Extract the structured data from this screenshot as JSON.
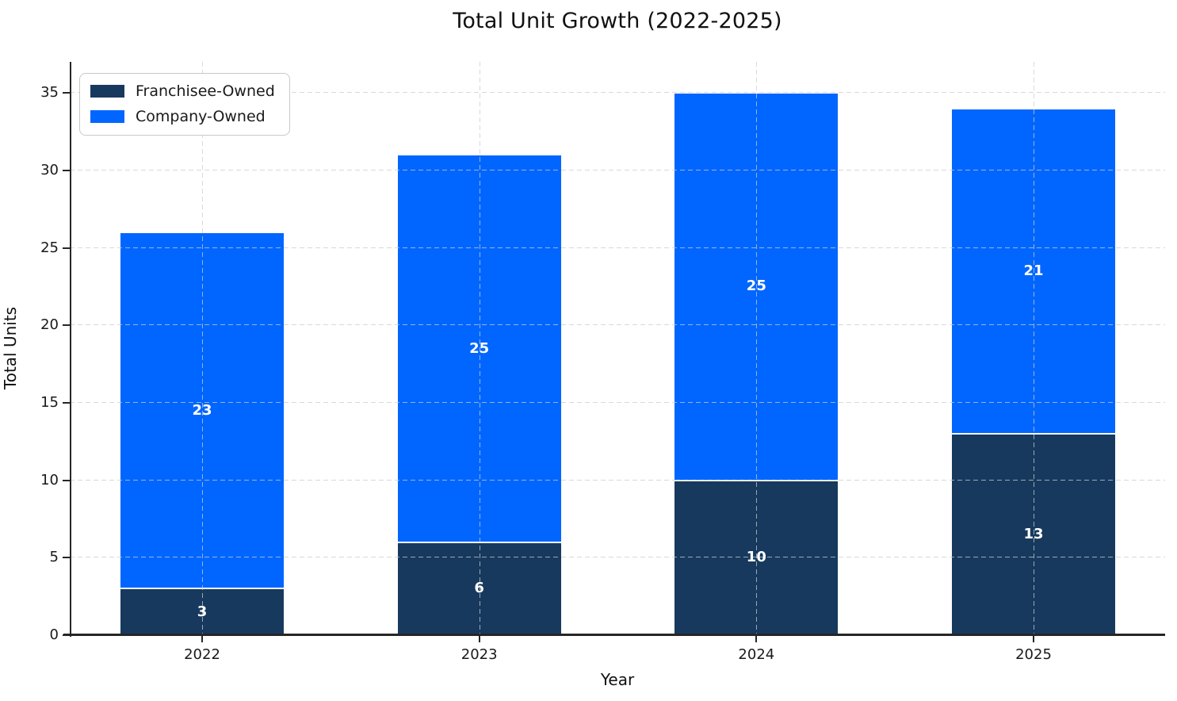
{
  "chart_data": {
    "type": "bar",
    "stacked": true,
    "title": "Total Unit Growth (2022-2025)",
    "xlabel": "Year",
    "ylabel": "Total Units",
    "categories": [
      "2022",
      "2023",
      "2024",
      "2025"
    ],
    "series": [
      {
        "name": "Franchisee-Owned",
        "color": "#17395e",
        "values": [
          3,
          6,
          10,
          13
        ]
      },
      {
        "name": "Company-Owned",
        "color": "#0066ff",
        "values": [
          23,
          25,
          25,
          21
        ]
      }
    ],
    "bar_value_labels": [
      [
        3,
        6,
        10,
        13
      ],
      [
        23,
        25,
        25,
        21
      ]
    ],
    "ylim": [
      0,
      37
    ],
    "yticks": [
      0,
      5,
      10,
      15,
      20,
      25,
      30,
      35
    ],
    "grid": true,
    "grid_style": "dashed",
    "grid_color": "#cccccc",
    "legend_position": "upper-left",
    "colors": {
      "axis": "#262626",
      "tick_text": "#1a1a1a",
      "title_text": "#111111",
      "bar_label_text": "#ffffff",
      "bar_edge": "#ffffff",
      "background": "#ffffff"
    }
  }
}
